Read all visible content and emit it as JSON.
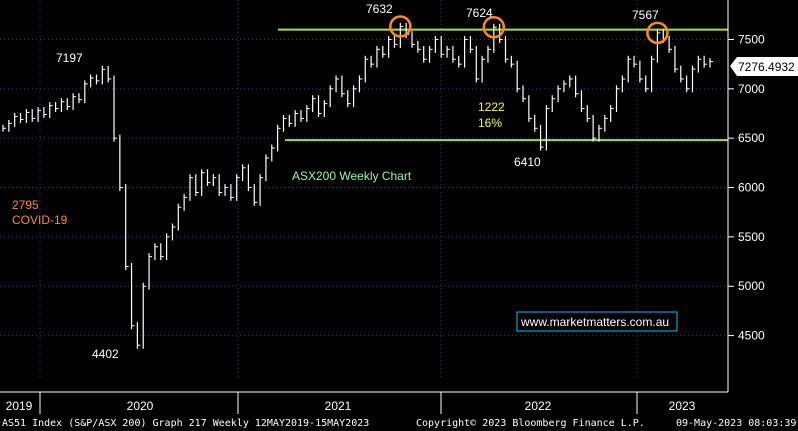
{
  "chart_data": {
    "type": "line",
    "title": "ASX200 Weekly Chart",
    "ylim": [
      4050,
      7900
    ],
    "y_ticks": [
      4500,
      5000,
      5500,
      6000,
      6500,
      7000,
      7500
    ],
    "x_ticks": [
      "2019",
      "2020",
      "2021",
      "2022",
      "2023"
    ],
    "grid": true,
    "last_price": "7276.4932",
    "colors": {
      "background": "#000000",
      "price": "#ffffff",
      "support_line": "#a8e03a",
      "circle": "#ff8c1a",
      "grid": "#2a3d80",
      "watermark": "#00bfff"
    },
    "series": [
      {
        "values": [
          6600,
          6650,
          6720,
          6690,
          6760,
          6700,
          6780,
          6740,
          6830,
          6800,
          6870,
          6820,
          6920,
          6890,
          7050,
          7110,
          7080,
          7197,
          7100,
          6500,
          6000,
          5200,
          4600,
          4402,
          5000,
          5300,
          5400,
          5300,
          5500,
          5600,
          5800,
          5900,
          6100,
          5950,
          6150,
          6050,
          6100,
          5950,
          6000,
          5900,
          6100,
          6200,
          6000,
          5850,
          6100,
          6300,
          6400,
          6600,
          6700,
          6650,
          6750,
          6700,
          6800,
          6900,
          6750,
          6850,
          7000,
          7100,
          6950,
          6850,
          7000,
          7100,
          7300,
          7250,
          7400,
          7350,
          7500,
          7450,
          7632,
          7550,
          7450,
          7400,
          7300,
          7400,
          7500,
          7350,
          7400,
          7300,
          7250,
          7500,
          7400,
          7100,
          7300,
          7400,
          7624,
          7500,
          7300,
          7250,
          7000,
          6900,
          6700,
          6600,
          6410,
          6800,
          6900,
          7000,
          7050,
          7100,
          6950,
          6800,
          6700,
          6500,
          6600,
          6700,
          6800,
          7000,
          7100,
          7300,
          7250,
          7100,
          7000,
          7300,
          7567,
          7500,
          7400,
          7200,
          7100,
          7000,
          7200,
          7300,
          7250,
          7276
        ]
      }
    ],
    "levels": [
      {
        "value": 7600
      },
      {
        "value": 6480
      }
    ],
    "annotations": {
      "peak_2020": "7197",
      "peak_2021": "7632",
      "peak_2021b": "7624",
      "peak_2023": "7567",
      "low_2020": "4402",
      "low_2022": "6410",
      "fall_points": "2795",
      "fall_label": "COVID-19",
      "rise_points": "1222",
      "rise_pct": "16%"
    },
    "watermark": "www.marketmatters.com.au",
    "footer": {
      "left": "AS51 Index (S&P/ASX 200) Graph 217  Weekly 12MAY2019-15MAY2023",
      "center": "Copyright© 2023 Bloomberg Finance L.P.",
      "right": "09-May-2023 08:03:39"
    }
  }
}
